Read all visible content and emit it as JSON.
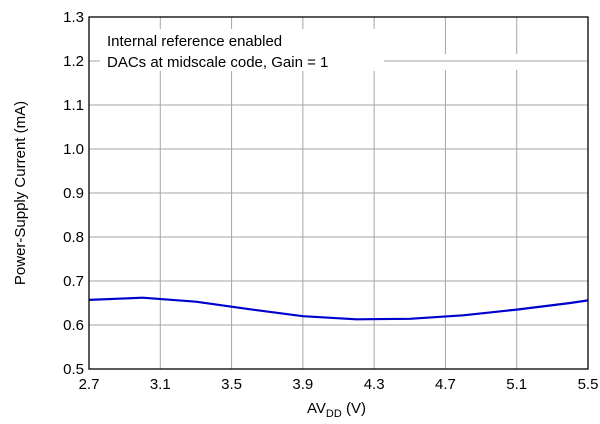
{
  "chart_data": {
    "type": "line",
    "title": "",
    "xlabel": {
      "main": "AV",
      "sub": "DD",
      "unit": " (V)"
    },
    "ylabel": "Power-Supply Current (mA)",
    "xlim": [
      2.7,
      5.5
    ],
    "ylim": [
      0.5,
      1.3
    ],
    "xticks": [
      2.7,
      3.1,
      3.5,
      3.9,
      4.3,
      4.7,
      5.1,
      5.5
    ],
    "yticks": [
      0.5,
      0.6,
      0.7,
      0.8,
      0.9,
      1.0,
      1.1,
      1.2,
      1.3
    ],
    "xtick_labels": [
      "2.7",
      "3.1",
      "3.5",
      "3.9",
      "4.3",
      "4.7",
      "5.1",
      "5.5"
    ],
    "ytick_labels": [
      "0.5",
      "0.6",
      "0.7",
      "0.8",
      "0.9",
      "1.0",
      "1.1",
      "1.2",
      "1.3"
    ],
    "grid": true,
    "annotations": [
      "Internal reference enabled",
      "DACs at midscale code, Gain = 1"
    ],
    "series_color": "#0000cc",
    "series": [
      {
        "x": [
          2.7,
          3.0,
          3.3,
          3.6,
          3.9,
          4.2,
          4.5,
          4.8,
          5.1,
          5.4,
          5.5
        ],
        "y": [
          0.657,
          0.662,
          0.653,
          0.636,
          0.62,
          0.613,
          0.614,
          0.622,
          0.635,
          0.65,
          0.656
        ]
      }
    ]
  }
}
